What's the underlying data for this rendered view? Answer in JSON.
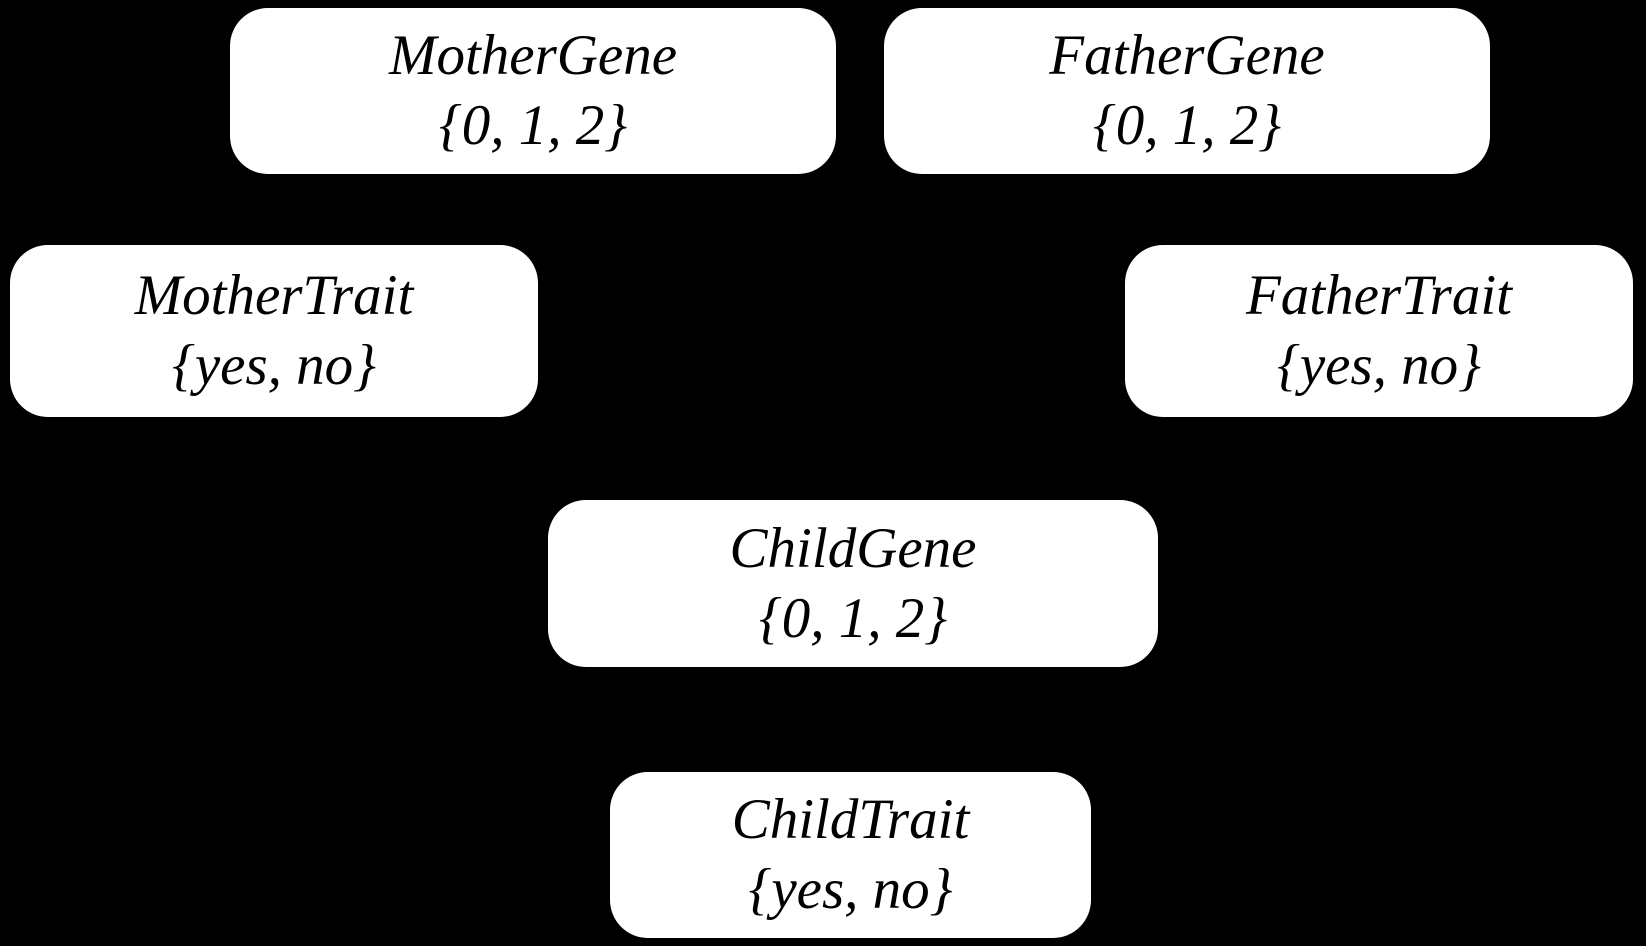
{
  "diagram": {
    "type": "bayesian-network",
    "background_color": "#000000",
    "node_fill_color": "#ffffff",
    "node_text_color": "#000000",
    "edges_visible": false,
    "nodes": [
      {
        "id": "mother-gene",
        "label": "MotherGene",
        "domain": "{0, 1, 2}"
      },
      {
        "id": "father-gene",
        "label": "FatherGene",
        "domain": "{0, 1, 2}"
      },
      {
        "id": "mother-trait",
        "label": "MotherTrait",
        "domain": "{yes, no}"
      },
      {
        "id": "father-trait",
        "label": "FatherTrait",
        "domain": "{yes, no}"
      },
      {
        "id": "child-gene",
        "label": "ChildGene",
        "domain": "{0, 1, 2}"
      },
      {
        "id": "child-trait",
        "label": "ChildTrait",
        "domain": "{yes, no}"
      }
    ]
  }
}
